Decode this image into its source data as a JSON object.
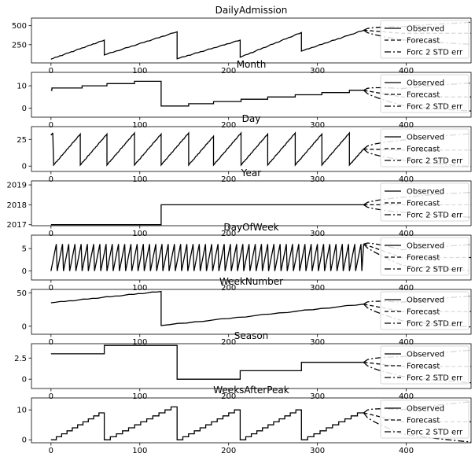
{
  "chart_data": [
    {
      "type": "line",
      "title": "DailyAdmission",
      "yticks": [
        250,
        500
      ],
      "ylim": [
        10,
        600
      ],
      "segments": [
        {
          "x0": 0,
          "x1": 60,
          "y0": 60,
          "y1": 310,
          "steps": 0
        },
        {
          "x0": 60,
          "x1": 142,
          "y0": 115,
          "y1": 420,
          "steps": 0
        },
        {
          "x0": 142,
          "x1": 213,
          "y0": 65,
          "y1": 310,
          "steps": 0
        },
        {
          "x0": 213,
          "x1": 282,
          "y0": 85,
          "y1": 410,
          "steps": 0
        },
        {
          "x0": 282,
          "x1": 352,
          "y0": 165,
          "y1": 440,
          "steps": 0
        }
      ],
      "forecast": {
        "start": 352,
        "end": 482,
        "center": 400,
        "spread": 300
      },
      "legend": [
        "Observed",
        "Forecast",
        "Forc 2 STD err"
      ]
    },
    {
      "type": "line",
      "title": "Month",
      "yticks": [
        0,
        10
      ],
      "ylim": [
        -4,
        16
      ],
      "segments": [
        {
          "x0": 0,
          "x1": 1,
          "y0": 8,
          "y1": 8,
          "steps": 0
        },
        {
          "x0": 1,
          "x1": 4,
          "y0": 9,
          "y1": 9,
          "steps": 0
        },
        {
          "x0": 4,
          "x1": 35,
          "y0": 9,
          "y1": 9,
          "steps": 0
        },
        {
          "x0": 35,
          "x1": 63,
          "y0": 10,
          "y1": 10,
          "steps": 0
        },
        {
          "x0": 63,
          "x1": 94,
          "y0": 11,
          "y1": 11,
          "steps": 0
        },
        {
          "x0": 94,
          "x1": 124,
          "y0": 12,
          "y1": 12,
          "steps": 0
        },
        {
          "x0": 124,
          "x1": 155,
          "y0": 1,
          "y1": 1,
          "steps": 0
        },
        {
          "x0": 155,
          "x1": 183,
          "y0": 2,
          "y1": 2,
          "steps": 0
        },
        {
          "x0": 183,
          "x1": 214,
          "y0": 3,
          "y1": 3,
          "steps": 0
        },
        {
          "x0": 214,
          "x1": 244,
          "y0": 4,
          "y1": 4,
          "steps": 0
        },
        {
          "x0": 244,
          "x1": 275,
          "y0": 5,
          "y1": 5,
          "steps": 0
        },
        {
          "x0": 275,
          "x1": 305,
          "y0": 6,
          "y1": 6,
          "steps": 0
        },
        {
          "x0": 305,
          "x1": 336,
          "y0": 7,
          "y1": 7,
          "steps": 0
        },
        {
          "x0": 336,
          "x1": 352,
          "y0": 8,
          "y1": 8,
          "steps": 0
        }
      ],
      "forecast": {
        "start": 352,
        "end": 482,
        "center": 5,
        "spread": 13
      },
      "legend": [
        "Observed",
        "Forecast",
        "Forc 2 STD err"
      ]
    },
    {
      "type": "line",
      "title": "Day",
      "yticks": [
        0,
        25
      ],
      "ylim": [
        -5,
        37
      ],
      "segments": [
        {
          "x0": 0,
          "x1": 2,
          "y0": 29,
          "y1": 31,
          "steps": 0
        },
        {
          "x0": 3,
          "x1": 33,
          "y0": 1,
          "y1": 30,
          "steps": 0
        },
        {
          "x0": 33,
          "x1": 63,
          "y0": 1,
          "y1": 30,
          "steps": 0
        },
        {
          "x0": 63,
          "x1": 94,
          "y0": 1,
          "y1": 31,
          "steps": 0
        },
        {
          "x0": 94,
          "x1": 124,
          "y0": 1,
          "y1": 30,
          "steps": 0
        },
        {
          "x0": 124,
          "x1": 155,
          "y0": 1,
          "y1": 31,
          "steps": 0
        },
        {
          "x0": 155,
          "x1": 183,
          "y0": 1,
          "y1": 28,
          "steps": 0
        },
        {
          "x0": 183,
          "x1": 214,
          "y0": 1,
          "y1": 31,
          "steps": 0
        },
        {
          "x0": 214,
          "x1": 244,
          "y0": 1,
          "y1": 30,
          "steps": 0
        },
        {
          "x0": 244,
          "x1": 275,
          "y0": 1,
          "y1": 31,
          "steps": 0
        },
        {
          "x0": 275,
          "x1": 305,
          "y0": 1,
          "y1": 30,
          "steps": 0
        },
        {
          "x0": 305,
          "x1": 336,
          "y0": 1,
          "y1": 31,
          "steps": 0
        },
        {
          "x0": 336,
          "x1": 352,
          "y0": 1,
          "y1": 16,
          "steps": 0
        }
      ],
      "forecast": {
        "start": 352,
        "end": 482,
        "center": 15,
        "spread": 32
      },
      "legend": [
        "Observed",
        "Forecast",
        "Forc 2 STD err"
      ]
    },
    {
      "type": "line",
      "title": "Year",
      "yticks": [
        2017,
        2018,
        2019
      ],
      "ylim": [
        2016.95,
        2019.2
      ],
      "segments": [
        {
          "x0": 0,
          "x1": 124,
          "y0": 2017,
          "y1": 2017,
          "steps": 0
        },
        {
          "x0": 124,
          "x1": 352,
          "y0": 2018,
          "y1": 2018,
          "steps": 0
        }
      ],
      "forecast": {
        "start": 352,
        "end": 482,
        "center": 2018,
        "spread": 1.3
      },
      "legend": [
        "Observed",
        "Forecast",
        "Forc 2 STD err"
      ]
    },
    {
      "type": "line",
      "title": "DayOfWeek",
      "yticks": [
        0,
        5
      ],
      "ylim": [
        -2,
        8
      ],
      "segments": [
        {
          "x0": 0,
          "x1": 352,
          "y0": 0,
          "y1": 6,
          "steps": 0,
          "sawtooth": 7
        }
      ],
      "forecast": {
        "start": 352,
        "end": 482,
        "center": 3,
        "spread": 6
      },
      "legend": [
        "Observed",
        "Forecast",
        "Forc 2 STD err"
      ]
    },
    {
      "type": "line",
      "title": "WeekNumber",
      "yticks": [
        0,
        50
      ],
      "ylim": [
        -12,
        55
      ],
      "segments": [
        {
          "x0": 0,
          "x1": 124,
          "y0": 35,
          "y1": 52,
          "steps": 0
        },
        {
          "x0": 124,
          "x1": 352,
          "y0": 1,
          "y1": 33,
          "steps": 0
        }
      ],
      "forecast": {
        "start": 352,
        "end": 482,
        "center": 22,
        "spread": 48
      },
      "legend": [
        "Observed",
        "Forecast",
        "Forc 2 STD err"
      ]
    },
    {
      "type": "line",
      "title": "Season",
      "yticks": [
        0.0,
        2.5
      ],
      "ylim": [
        -1.1,
        4.2
      ],
      "segments": [
        {
          "x0": 0,
          "x1": 60,
          "y0": 3,
          "y1": 3,
          "steps": 0
        },
        {
          "x0": 60,
          "x1": 142,
          "y0": 4,
          "y1": 4,
          "steps": 0
        },
        {
          "x0": 142,
          "x1": 213,
          "y0": 0,
          "y1": 0,
          "steps": 0
        },
        {
          "x0": 213,
          "x1": 282,
          "y0": 1,
          "y1": 1,
          "steps": 0
        },
        {
          "x0": 282,
          "x1": 352,
          "y0": 2,
          "y1": 2,
          "steps": 0
        }
      ],
      "forecast": {
        "start": 352,
        "end": 482,
        "center": 1.5,
        "spread": 4
      },
      "legend": [
        "Observed",
        "Forecast",
        "Forc 2 STD err"
      ]
    },
    {
      "type": "line",
      "title": "WeeksAfterPeak",
      "yticks": [
        0,
        10
      ],
      "ylim": [
        -1,
        14
      ],
      "segments": [
        {
          "x0": 0,
          "x1": 60,
          "y0": 0,
          "y1": 9,
          "steps": 9
        },
        {
          "x0": 60,
          "x1": 142,
          "y0": 0,
          "y1": 11,
          "steps": 11
        },
        {
          "x0": 142,
          "x1": 213,
          "y0": 0,
          "y1": 10,
          "steps": 10
        },
        {
          "x0": 213,
          "x1": 282,
          "y0": 0,
          "y1": 10,
          "steps": 10
        },
        {
          "x0": 282,
          "x1": 352,
          "y0": 0,
          "y1": 9,
          "steps": 9
        }
      ],
      "forecast": {
        "start": 352,
        "end": 482,
        "center": 6,
        "spread": 14
      },
      "legend": [
        "Observed",
        "Forecast",
        "Forc 2 STD err"
      ]
    }
  ],
  "xaxis": {
    "ticks": [
      0,
      100,
      200,
      300,
      400
    ],
    "xlim": [
      -22,
      473
    ]
  }
}
